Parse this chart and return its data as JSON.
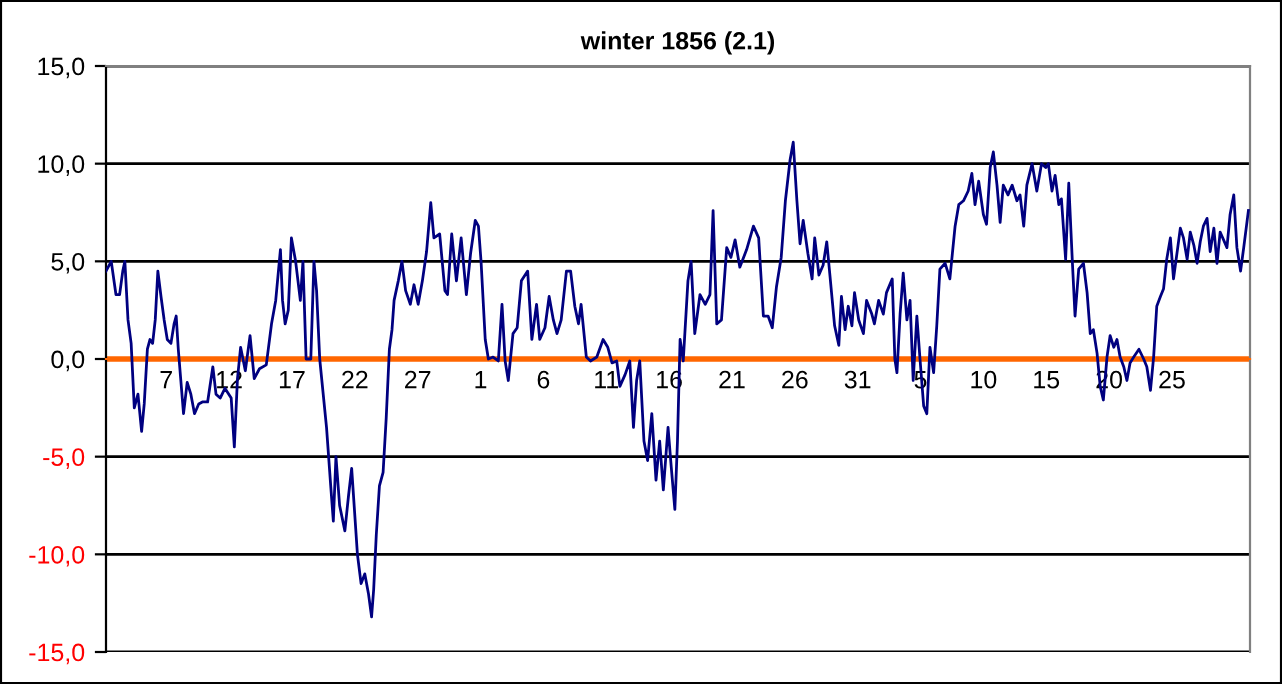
{
  "chart_data": {
    "type": "line",
    "title": "winter 1856 (2.1)",
    "xlim": [
      "1855-12-02T05:00",
      "1856-03-02T05:00"
    ],
    "xticks": [
      {
        "value": "1855-12-07",
        "label": "7"
      },
      {
        "value": "1855-12-12",
        "label": "12"
      },
      {
        "value": "1855-12-17",
        "label": "17"
      },
      {
        "value": "1855-12-22",
        "label": "22"
      },
      {
        "value": "1855-12-27",
        "label": "27"
      },
      {
        "value": "1856-01-01",
        "label": "1"
      },
      {
        "value": "1856-01-06",
        "label": "6"
      },
      {
        "value": "1856-01-11",
        "label": "11"
      },
      {
        "value": "1856-01-16",
        "label": "16"
      },
      {
        "value": "1856-01-21",
        "label": "21"
      },
      {
        "value": "1856-01-26",
        "label": "26"
      },
      {
        "value": "1856-01-31",
        "label": "31"
      },
      {
        "value": "1856-02-05",
        "label": "5"
      },
      {
        "value": "1856-02-10",
        "label": "10"
      },
      {
        "value": "1856-02-15",
        "label": "15"
      },
      {
        "value": "1856-02-20",
        "label": "20"
      },
      {
        "value": "1856-02-25",
        "label": "25"
      }
    ],
    "ylim": [
      -15,
      15
    ],
    "yticks": [
      {
        "value": -15,
        "label": "-15,0"
      },
      {
        "value": -10,
        "label": "-10,0"
      },
      {
        "value": -5,
        "label": "-5,0"
      },
      {
        "value": 0,
        "label": "0,0"
      },
      {
        "value": 5,
        "label": "5,0"
      },
      {
        "value": 10,
        "label": "10,0"
      },
      {
        "value": 15,
        "label": "15,0"
      }
    ],
    "grid": "y",
    "marker": "none",
    "line_style": "solid",
    "ref_lines": [
      {
        "axis": "y",
        "value": 0,
        "color": "#ff6600"
      }
    ],
    "series": [
      {
        "color": "#000080",
        "x": [
          "1855-12-02T05:00",
          "1855-12-02T15:00",
          "1855-12-03T00:00",
          "1855-12-03T07:00",
          "1855-12-03T13:00",
          "1855-12-03T17:00",
          "1855-12-03T23:00",
          "1855-12-04T05:00",
          "1855-12-04T11:00",
          "1855-12-04T18:00",
          "1855-12-05T01:00",
          "1855-12-05T06:00",
          "1855-12-05T12:00",
          "1855-12-05T17:00",
          "1855-12-05T22:00",
          "1855-12-06T03:00",
          "1855-12-06T08:00",
          "1855-12-06T14:00",
          "1855-12-06T20:00",
          "1855-12-07T02:00",
          "1855-12-07T09:00",
          "1855-12-07T15:00",
          "1855-12-07T19:00",
          "1855-12-07T23:00",
          "1855-12-08T09:00",
          "1855-12-08T16:00",
          "1855-12-08T23:00",
          "1855-12-09T06:00",
          "1855-12-09T14:00",
          "1855-12-09T21:00",
          "1855-12-10T07:00",
          "1855-12-10T17:00",
          "1855-12-10T23:00",
          "1855-12-11T07:00",
          "1855-12-11T16:00",
          "1855-12-12T04:00",
          "1855-12-12T10:00",
          "1855-12-12T16:00",
          "1855-12-12T22:00",
          "1855-12-13T07:00",
          "1855-12-13T16:00",
          "1855-12-14T00:00",
          "1855-12-14T10:00",
          "1855-12-14T23:00",
          "1855-12-15T09:00",
          "1855-12-15T17:00",
          "1855-12-16T02:00",
          "1855-12-16T06:00",
          "1855-12-16T11:00",
          "1855-12-16T17:00",
          "1855-12-16T23:00",
          "1855-12-17T07:00",
          "1855-12-17T16:00",
          "1855-12-17T21:00",
          "1855-12-18T03:00",
          "1855-12-18T12:00",
          "1855-12-18T18:00",
          "1855-12-18T23:00",
          "1855-12-19T05:00",
          "1855-12-19T18:00",
          "1855-12-20T02:00",
          "1855-12-20T07:00",
          "1855-12-20T12:00",
          "1855-12-20T19:00",
          "1855-12-21T05:00",
          "1855-12-21T12:00",
          "1855-12-21T18:00",
          "1855-12-22T05:00",
          "1855-12-22T12:00",
          "1855-12-22T19:00",
          "1855-12-23T02:00",
          "1855-12-23T08:00",
          "1855-12-23T12:00",
          "1855-12-23T17:00",
          "1855-12-23T23:00",
          "1855-12-24T06:00",
          "1855-12-24T12:00",
          "1855-12-24T18:00",
          "1855-12-24T23:00",
          "1855-12-25T03:00",
          "1855-12-25T11:00",
          "1855-12-25T18:00",
          "1855-12-26T01:00",
          "1855-12-26T10:00",
          "1855-12-26T17:00",
          "1855-12-27T01:00",
          "1855-12-27T09:00",
          "1855-12-27T17:00",
          "1855-12-28T01:00",
          "1855-12-28T07:00",
          "1855-12-28T18:00",
          "1855-12-29T04:00",
          "1855-12-29T09:00",
          "1855-12-29T17:00",
          "1855-12-30T02:00",
          "1855-12-30T11:00",
          "1855-12-30T21:00",
          "1855-12-31T05:00",
          "1855-12-31T14:00",
          "1855-12-31T20:00",
          "1856-01-01T01:00",
          "1856-01-01T09:00",
          "1856-01-01T15:00",
          "1856-01-02T00:00",
          "1856-01-02T10:00",
          "1856-01-02T17:00",
          "1856-01-02T23:00",
          "1856-01-03T05:00",
          "1856-01-03T14:00",
          "1856-01-03T22:00",
          "1856-01-04T06:00",
          "1856-01-04T18:00",
          "1856-01-05T02:00",
          "1856-01-05T11:00",
          "1856-01-05T17:00",
          "1856-01-06T03:00",
          "1856-01-06T11:00",
          "1856-01-06T19:00",
          "1856-01-07T02:00",
          "1856-01-07T10:00",
          "1856-01-07T20:00",
          "1856-01-08T04:00",
          "1856-01-08T12:00",
          "1856-01-08T19:00",
          "1856-01-09T00:00",
          "1856-01-09T10:00",
          "1856-01-09T18:00",
          "1856-01-10T06:00",
          "1856-01-10T18:00",
          "1856-01-11T03:00",
          "1856-01-11T11:00",
          "1856-01-11T20:00",
          "1856-01-12T02:00",
          "1856-01-12T12:00",
          "1856-01-12T21:00",
          "1856-01-13T04:00",
          "1856-01-13T10:00",
          "1856-01-13T16:00",
          "1856-01-14T00:00",
          "1856-01-14T07:00",
          "1856-01-14T15:00",
          "1856-01-14T23:00",
          "1856-01-15T06:00",
          "1856-01-15T13:00",
          "1856-01-15T22:00",
          "1856-01-16T04:00",
          "1856-01-16T11:00",
          "1856-01-16T16:00",
          "1856-01-16T21:00",
          "1856-01-17T03:00",
          "1856-01-17T12:00",
          "1856-01-17T18:00",
          "1856-01-18T01:00",
          "1856-01-18T11:00",
          "1856-01-18T21:00",
          "1856-01-19T06:00",
          "1856-01-19T12:00",
          "1856-01-19T19:00",
          "1856-01-20T04:00",
          "1856-01-20T14:00",
          "1856-01-20T22:00",
          "1856-01-21T06:00",
          "1856-01-21T15:00",
          "1856-01-22T04:00",
          "1856-01-22T17:00",
          "1856-01-23T03:00",
          "1856-01-23T12:00",
          "1856-01-23T21:00",
          "1856-01-24T05:00",
          "1856-01-24T13:00",
          "1856-01-24T22:00",
          "1856-01-25T06:00",
          "1856-01-25T15:00",
          "1856-01-25T21:00",
          "1856-01-26T04:00",
          "1856-01-26T10:00",
          "1856-01-26T16:00",
          "1856-01-27T01:00",
          "1856-01-27T09:00",
          "1856-01-27T14:00",
          "1856-01-27T22:00",
          "1856-01-28T06:00",
          "1856-01-28T13:00",
          "1856-01-28T19:00",
          "1856-01-29T04:00",
          "1856-01-29T12:00",
          "1856-01-29T17:00",
          "1856-01-30T00:00",
          "1856-01-30T06:00",
          "1856-01-30T13:00",
          "1856-01-30T18:00",
          "1856-01-31T02:00",
          "1856-01-31T11:00",
          "1856-01-31T17:00",
          "1856-02-01T03:00",
          "1856-02-01T08:00",
          "1856-02-01T16:00",
          "1856-02-02T01:00",
          "1856-02-02T07:00",
          "1856-02-02T18:00",
          "1856-02-02T23:00",
          "1856-02-03T03:00",
          "1856-02-03T09:00",
          "1856-02-03T15:00",
          "1856-02-03T22:00",
          "1856-02-04T04:00",
          "1856-02-04T10:00",
          "1856-02-04T17:00",
          "1856-02-04T23:00",
          "1856-02-05T06:00",
          "1856-02-05T12:00",
          "1856-02-05T18:00",
          "1856-02-06T01:00",
          "1856-02-06T07:00",
          "1856-02-06T13:00",
          "1856-02-06T23:00",
          "1856-02-07T08:00",
          "1856-02-07T18:00",
          "1856-02-08T01:00",
          "1856-02-08T10:00",
          "1856-02-08T19:00",
          "1856-02-09T02:00",
          "1856-02-09T08:00",
          "1856-02-09T15:00",
          "1856-02-10T00:00",
          "1856-02-10T06:00",
          "1856-02-10T13:00",
          "1856-02-10T19:00",
          "1856-02-11T02:00",
          "1856-02-11T08:00",
          "1856-02-11T14:00",
          "1856-02-11T23:00",
          "1856-02-12T07:00",
          "1856-02-12T16:00",
          "1856-02-12T22:00",
          "1856-02-13T05:00",
          "1856-02-13T11:00",
          "1856-02-13T21:00",
          "1856-02-14T06:00",
          "1856-02-14T15:00",
          "1856-02-14T23:00",
          "1856-02-15T04:00",
          "1856-02-15T11:00",
          "1856-02-15T17:00",
          "1856-02-16T00:00",
          "1856-02-16T05:00",
          "1856-02-16T13:00",
          "1856-02-16T19:00",
          "1856-02-17T02:00",
          "1856-02-17T07:00",
          "1856-02-17T14:00",
          "1856-02-17T23:00",
          "1856-02-18T06:00",
          "1856-02-18T12:00",
          "1856-02-18T18:00",
          "1856-02-19T01:00",
          "1856-02-19T07:00",
          "1856-02-19T13:00",
          "1856-02-19T20:00",
          "1856-02-20T02:00",
          "1856-02-20T09:00",
          "1856-02-20T15:00",
          "1856-02-20T21:00",
          "1856-02-21T04:00",
          "1856-02-21T10:00",
          "1856-02-21T16:00",
          "1856-02-21T23:00",
          "1856-02-22T09:00",
          "1856-02-22T18:00",
          "1856-02-23T00:00",
          "1856-02-23T07:00",
          "1856-02-23T13:00",
          "1856-02-23T19:00",
          "1856-02-24T02:00",
          "1856-02-24T08:00",
          "1856-02-24T14:00",
          "1856-02-24T21:00",
          "1856-02-25T03:00",
          "1856-02-25T10:00",
          "1856-02-25T16:00",
          "1856-02-25T22:00",
          "1856-02-26T05:00",
          "1856-02-26T11:00",
          "1856-02-26T18:00",
          "1856-02-27T00:00",
          "1856-02-27T06:00",
          "1856-02-27T12:00",
          "1856-02-27T19:00",
          "1856-02-28T01:00",
          "1856-02-28T08:00",
          "1856-02-28T14:00",
          "1856-02-28T20:00",
          "1856-02-29T09:00",
          "1856-02-29T15:00",
          "1856-02-29T22:00",
          "1856-03-01T04:00",
          "1856-03-01T11:00",
          "1856-03-01T17:00",
          "1856-03-02T02:00"
        ],
        "values": [
          4.5,
          5.0,
          3.3,
          3.3,
          4.5,
          5.0,
          2.0,
          0.8,
          -2.5,
          -1.8,
          -3.7,
          -2.3,
          0.5,
          1.0,
          0.8,
          2.0,
          4.5,
          3.2,
          2.0,
          1.0,
          0.8,
          1.8,
          2.2,
          0.5,
          -2.8,
          -1.2,
          -1.8,
          -2.8,
          -2.3,
          -2.2,
          -2.2,
          -0.4,
          -1.8,
          -2.0,
          -1.5,
          -2.0,
          -4.5,
          -1.0,
          0.6,
          -0.6,
          1.2,
          -1.0,
          -0.5,
          -0.3,
          1.8,
          3.0,
          5.6,
          3.0,
          1.8,
          2.5,
          6.2,
          5.0,
          3.0,
          5.0,
          0.0,
          0.0,
          5.0,
          3.5,
          0.0,
          -3.5,
          -6.5,
          -8.3,
          -5.0,
          -7.5,
          -8.8,
          -7.0,
          -5.6,
          -10.0,
          -11.5,
          -11.0,
          -12.0,
          -13.2,
          -11.8,
          -9.0,
          -6.5,
          -5.8,
          -3.0,
          0.5,
          1.5,
          3.0,
          4.0,
          5.0,
          3.5,
          2.8,
          3.8,
          2.8,
          4.0,
          5.5,
          8.0,
          6.2,
          6.4,
          3.5,
          3.3,
          6.4,
          4.0,
          6.2,
          3.3,
          5.4,
          7.1,
          6.8,
          5.0,
          1.0,
          0.0,
          0.1,
          -0.1,
          2.8,
          -0.1,
          -1.1,
          1.3,
          1.6,
          4.0,
          4.5,
          1.0,
          2.8,
          1.0,
          1.6,
          3.2,
          2.0,
          1.3,
          2.0,
          4.5,
          4.5,
          2.7,
          1.8,
          2.8,
          0.1,
          -0.1,
          0.1,
          1.0,
          0.6,
          -0.2,
          -0.1,
          -1.4,
          -0.8,
          -0.1,
          -3.5,
          -1.1,
          -0.1,
          -4.2,
          -5.2,
          -2.8,
          -6.2,
          -4.2,
          -6.7,
          -3.5,
          -5.5,
          -7.7,
          -4.2,
          1.0,
          -0.1,
          4.0,
          5.0,
          1.3,
          3.3,
          2.8,
          3.3,
          7.6,
          1.8,
          2.0,
          5.7,
          5.2,
          6.1,
          4.7,
          5.6,
          6.8,
          6.2,
          2.2,
          2.2,
          1.6,
          3.7,
          5.2,
          8.1,
          10.2,
          11.1,
          8.1,
          5.9,
          7.1,
          5.4,
          4.1,
          6.2,
          4.3,
          4.8,
          6.0,
          4.3,
          1.7,
          0.7,
          3.2,
          1.5,
          2.7,
          1.7,
          3.4,
          2.0,
          1.3,
          3.0,
          2.3,
          1.8,
          3.0,
          2.3,
          3.4,
          4.1,
          0.0,
          -0.7,
          2.3,
          4.4,
          2.0,
          3.0,
          -1.1,
          2.2,
          0.0,
          -2.4,
          -2.8,
          0.6,
          -0.7,
          1.7,
          4.6,
          4.9,
          4.1,
          6.8,
          7.9,
          8.1,
          8.6,
          9.5,
          7.9,
          9.1,
          7.4,
          6.9,
          9.8,
          10.6,
          8.9,
          7.0,
          8.9,
          8.4,
          8.9,
          8.1,
          8.4,
          6.8,
          8.9,
          10.0,
          8.6,
          10.0,
          9.8,
          10.0,
          8.6,
          9.4,
          7.9,
          8.2,
          5.1,
          9.0,
          4.9,
          2.2,
          4.6,
          4.9,
          3.4,
          1.3,
          1.5,
          0.3,
          -1.4,
          -2.1,
          0.1,
          1.2,
          0.6,
          1.0,
          0.1,
          -0.4,
          -1.1,
          -0.2,
          0.1,
          0.5,
          0.0,
          -0.4,
          -1.6,
          0.1,
          2.7,
          3.2,
          3.6,
          5.1,
          6.2,
          4.1,
          5.5,
          6.7,
          6.2,
          5.1,
          6.5,
          5.8,
          4.9,
          6.0,
          6.8,
          7.2,
          5.5,
          6.7,
          4.9,
          6.5,
          5.7,
          7.4,
          8.4,
          5.7,
          4.5,
          5.7,
          7.6
        ]
      }
    ]
  }
}
